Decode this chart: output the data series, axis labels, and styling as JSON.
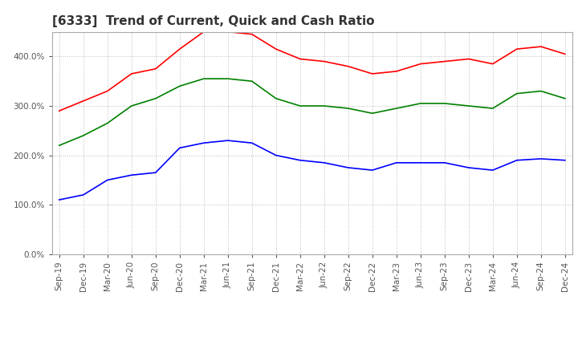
{
  "title": "[6333]  Trend of Current, Quick and Cash Ratio",
  "x_labels": [
    "Sep-19",
    "Dec-19",
    "Mar-20",
    "Jun-20",
    "Sep-20",
    "Dec-20",
    "Mar-21",
    "Jun-21",
    "Sep-21",
    "Dec-21",
    "Mar-22",
    "Jun-22",
    "Sep-22",
    "Dec-22",
    "Mar-23",
    "Jun-23",
    "Sep-23",
    "Dec-23",
    "Mar-24",
    "Jun-24",
    "Sep-24",
    "Dec-24"
  ],
  "current_ratio": [
    290,
    310,
    330,
    365,
    375,
    415,
    450,
    450,
    445,
    415,
    395,
    390,
    380,
    365,
    370,
    385,
    390,
    395,
    385,
    415,
    420,
    405
  ],
  "quick_ratio": [
    220,
    240,
    265,
    300,
    315,
    340,
    355,
    355,
    350,
    315,
    300,
    300,
    295,
    285,
    295,
    305,
    305,
    300,
    295,
    325,
    330,
    315
  ],
  "cash_ratio": [
    110,
    120,
    150,
    160,
    165,
    215,
    225,
    230,
    225,
    200,
    190,
    185,
    175,
    170,
    185,
    185,
    185,
    175,
    170,
    190,
    193,
    190
  ],
  "current_color": "#ff0000",
  "quick_color": "#008000",
  "cash_color": "#0000ff",
  "background_color": "#ffffff",
  "grid_color": "#bbbbbb",
  "ylim": [
    0,
    450
  ],
  "yticks": [
    0,
    100,
    200,
    300,
    400
  ],
  "title_fontsize": 11,
  "tick_fontsize": 7.5,
  "legend_fontsize": 9
}
